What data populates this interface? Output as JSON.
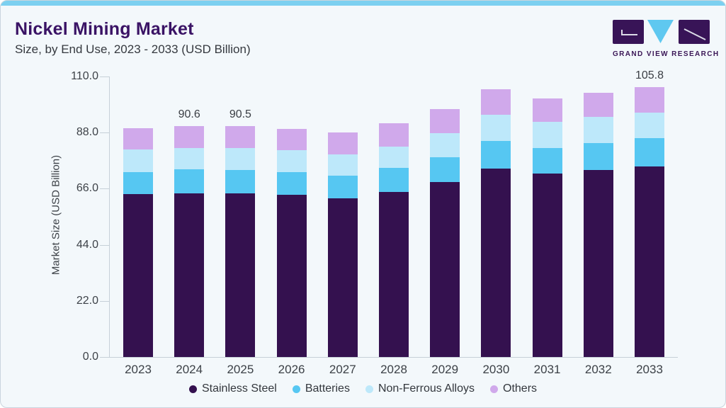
{
  "header": {
    "title": "Nickel Mining Market",
    "subtitle": "Size, by End Use, 2023 - 2033 (USD Billion)"
  },
  "logo": {
    "brand": "GRAND VIEW RESEARCH"
  },
  "colors": {
    "accent_strip": "#7CD0F0",
    "card_bg": "#F3F8FB",
    "card_border": "#C9D5DE",
    "title_text": "#3A1365",
    "subtitle_text": "#35393F",
    "axis_text": "#3D4248",
    "axis_line": "#C6D0D8",
    "logo_purple": "#381457",
    "logo_triangle": "#5FC8F0"
  },
  "chart_data": {
    "type": "bar",
    "stacked": true,
    "title": "",
    "xlabel": "",
    "ylabel": "Market Size (USD Billion)",
    "ylim": [
      0,
      110
    ],
    "grid": false,
    "legend_position": "bottom",
    "y_tick_labels": [
      "110.0",
      "88.0",
      "66.0",
      "44.0",
      "22.0",
      "0.0"
    ],
    "y_tick_values": [
      110,
      88,
      66,
      44,
      22,
      0
    ],
    "categories": [
      "2023",
      "2024",
      "2025",
      "2026",
      "2027",
      "2028",
      "2029",
      "2030",
      "2031",
      "2032",
      "2033"
    ],
    "series": [
      {
        "name": "Stainless Steel",
        "color": "#34114F",
        "values": [
          63.8,
          64.1,
          64.1,
          63.5,
          62.1,
          64.6,
          68.7,
          73.8,
          71.9,
          73.3,
          74.6
        ]
      },
      {
        "name": "Batteries",
        "color": "#56C7F2",
        "values": [
          8.6,
          9.5,
          9.2,
          8.9,
          8.9,
          9.5,
          9.7,
          10.9,
          10.0,
          10.6,
          11.1
        ]
      },
      {
        "name": "Non-Ferrous Alloys",
        "color": "#BDE8FA",
        "values": [
          8.9,
          8.4,
          8.6,
          8.6,
          8.4,
          8.4,
          9.5,
          10.2,
          10.3,
          10.2,
          10.2
        ]
      },
      {
        "name": "Others",
        "color": "#D0A9EB",
        "values": [
          8.4,
          8.6,
          8.6,
          8.4,
          8.6,
          9.2,
          9.3,
          10.2,
          9.2,
          9.6,
          9.9
        ]
      }
    ],
    "bar_labels": [
      "",
      "90.6",
      "90.5",
      "",
      "",
      "",
      "",
      "",
      "",
      "",
      "105.8"
    ],
    "totals": [
      89.7,
      90.6,
      90.5,
      89.4,
      88.0,
      91.7,
      97.2,
      105.1,
      101.4,
      103.7,
      105.8
    ]
  }
}
